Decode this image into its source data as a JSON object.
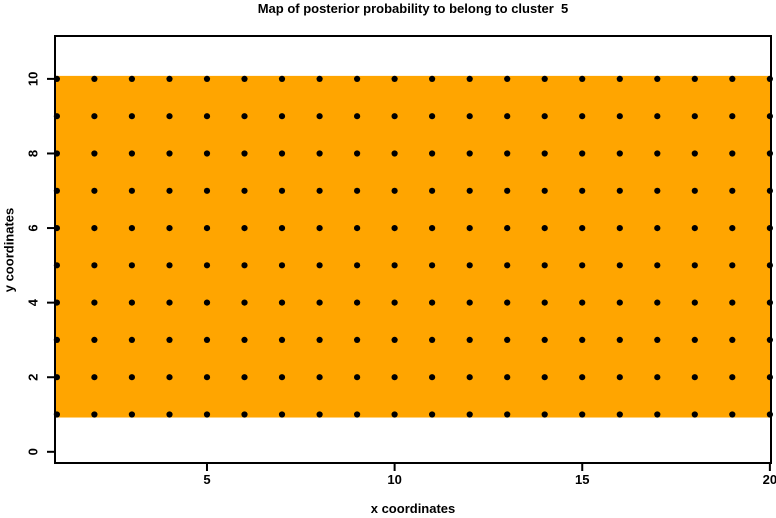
{
  "chart_data": {
    "type": "scatter",
    "title": "Map of posterior probability to belong to cluster  5",
    "xlabel": "x coordinates",
    "ylabel": "y coordinates",
    "x_ticks": [
      5,
      10,
      15,
      20
    ],
    "y_ticks": [
      0,
      2,
      4,
      6,
      8,
      10
    ],
    "xlim": [
      0.95,
      20.03
    ],
    "ylim": [
      -0.3,
      11.15
    ],
    "grid": false,
    "legend": null,
    "region": {
      "x_range": [
        1,
        20
      ],
      "y_range": [
        1,
        10
      ],
      "color": "#FFA500"
    },
    "points": {
      "x_values": [
        1,
        2,
        3,
        4,
        5,
        6,
        7,
        8,
        9,
        10,
        11,
        12,
        13,
        14,
        15,
        16,
        17,
        18,
        19,
        20
      ],
      "y_values": [
        1,
        2,
        3,
        4,
        5,
        6,
        7,
        8,
        9,
        10
      ],
      "marker": "filled-circle",
      "color": "#000000"
    },
    "colors": {
      "background": "#FFFFFF",
      "axis": "#000000",
      "region": "#FFA500",
      "points": "#000000"
    }
  }
}
